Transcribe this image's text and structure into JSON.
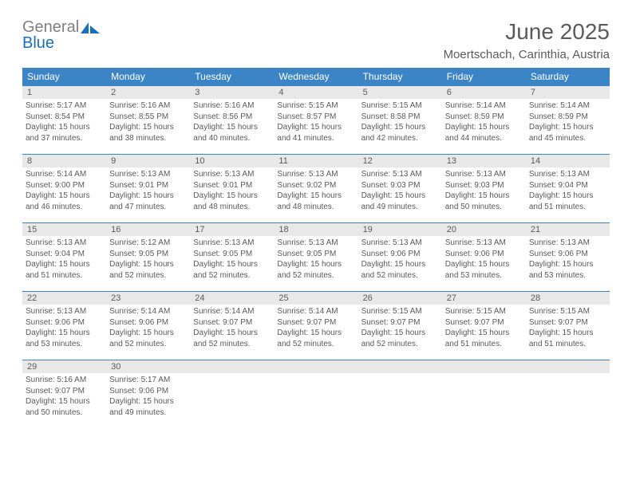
{
  "brand": {
    "word1": "General",
    "word2": "Blue",
    "gray_color": "#808080",
    "blue_color": "#1a6fb5"
  },
  "title": "June 2025",
  "location": "Moertschach, Carinthia, Austria",
  "colors": {
    "header_bg": "#3b85c6",
    "header_text": "#ffffff",
    "daynum_bg": "#e8e8e8",
    "text_color": "#5a5a5a",
    "week_border": "#3b85c6"
  },
  "day_headers": [
    "Sunday",
    "Monday",
    "Tuesday",
    "Wednesday",
    "Thursday",
    "Friday",
    "Saturday"
  ],
  "weeks": [
    [
      {
        "n": "1",
        "sr": "Sunrise: 5:17 AM",
        "ss": "Sunset: 8:54 PM",
        "dl1": "Daylight: 15 hours",
        "dl2": "and 37 minutes."
      },
      {
        "n": "2",
        "sr": "Sunrise: 5:16 AM",
        "ss": "Sunset: 8:55 PM",
        "dl1": "Daylight: 15 hours",
        "dl2": "and 38 minutes."
      },
      {
        "n": "3",
        "sr": "Sunrise: 5:16 AM",
        "ss": "Sunset: 8:56 PM",
        "dl1": "Daylight: 15 hours",
        "dl2": "and 40 minutes."
      },
      {
        "n": "4",
        "sr": "Sunrise: 5:15 AM",
        "ss": "Sunset: 8:57 PM",
        "dl1": "Daylight: 15 hours",
        "dl2": "and 41 minutes."
      },
      {
        "n": "5",
        "sr": "Sunrise: 5:15 AM",
        "ss": "Sunset: 8:58 PM",
        "dl1": "Daylight: 15 hours",
        "dl2": "and 42 minutes."
      },
      {
        "n": "6",
        "sr": "Sunrise: 5:14 AM",
        "ss": "Sunset: 8:59 PM",
        "dl1": "Daylight: 15 hours",
        "dl2": "and 44 minutes."
      },
      {
        "n": "7",
        "sr": "Sunrise: 5:14 AM",
        "ss": "Sunset: 8:59 PM",
        "dl1": "Daylight: 15 hours",
        "dl2": "and 45 minutes."
      }
    ],
    [
      {
        "n": "8",
        "sr": "Sunrise: 5:14 AM",
        "ss": "Sunset: 9:00 PM",
        "dl1": "Daylight: 15 hours",
        "dl2": "and 46 minutes."
      },
      {
        "n": "9",
        "sr": "Sunrise: 5:13 AM",
        "ss": "Sunset: 9:01 PM",
        "dl1": "Daylight: 15 hours",
        "dl2": "and 47 minutes."
      },
      {
        "n": "10",
        "sr": "Sunrise: 5:13 AM",
        "ss": "Sunset: 9:01 PM",
        "dl1": "Daylight: 15 hours",
        "dl2": "and 48 minutes."
      },
      {
        "n": "11",
        "sr": "Sunrise: 5:13 AM",
        "ss": "Sunset: 9:02 PM",
        "dl1": "Daylight: 15 hours",
        "dl2": "and 48 minutes."
      },
      {
        "n": "12",
        "sr": "Sunrise: 5:13 AM",
        "ss": "Sunset: 9:03 PM",
        "dl1": "Daylight: 15 hours",
        "dl2": "and 49 minutes."
      },
      {
        "n": "13",
        "sr": "Sunrise: 5:13 AM",
        "ss": "Sunset: 9:03 PM",
        "dl1": "Daylight: 15 hours",
        "dl2": "and 50 minutes."
      },
      {
        "n": "14",
        "sr": "Sunrise: 5:13 AM",
        "ss": "Sunset: 9:04 PM",
        "dl1": "Daylight: 15 hours",
        "dl2": "and 51 minutes."
      }
    ],
    [
      {
        "n": "15",
        "sr": "Sunrise: 5:13 AM",
        "ss": "Sunset: 9:04 PM",
        "dl1": "Daylight: 15 hours",
        "dl2": "and 51 minutes."
      },
      {
        "n": "16",
        "sr": "Sunrise: 5:12 AM",
        "ss": "Sunset: 9:05 PM",
        "dl1": "Daylight: 15 hours",
        "dl2": "and 52 minutes."
      },
      {
        "n": "17",
        "sr": "Sunrise: 5:13 AM",
        "ss": "Sunset: 9:05 PM",
        "dl1": "Daylight: 15 hours",
        "dl2": "and 52 minutes."
      },
      {
        "n": "18",
        "sr": "Sunrise: 5:13 AM",
        "ss": "Sunset: 9:05 PM",
        "dl1": "Daylight: 15 hours",
        "dl2": "and 52 minutes."
      },
      {
        "n": "19",
        "sr": "Sunrise: 5:13 AM",
        "ss": "Sunset: 9:06 PM",
        "dl1": "Daylight: 15 hours",
        "dl2": "and 52 minutes."
      },
      {
        "n": "20",
        "sr": "Sunrise: 5:13 AM",
        "ss": "Sunset: 9:06 PM",
        "dl1": "Daylight: 15 hours",
        "dl2": "and 53 minutes."
      },
      {
        "n": "21",
        "sr": "Sunrise: 5:13 AM",
        "ss": "Sunset: 9:06 PM",
        "dl1": "Daylight: 15 hours",
        "dl2": "and 53 minutes."
      }
    ],
    [
      {
        "n": "22",
        "sr": "Sunrise: 5:13 AM",
        "ss": "Sunset: 9:06 PM",
        "dl1": "Daylight: 15 hours",
        "dl2": "and 53 minutes."
      },
      {
        "n": "23",
        "sr": "Sunrise: 5:14 AM",
        "ss": "Sunset: 9:06 PM",
        "dl1": "Daylight: 15 hours",
        "dl2": "and 52 minutes."
      },
      {
        "n": "24",
        "sr": "Sunrise: 5:14 AM",
        "ss": "Sunset: 9:07 PM",
        "dl1": "Daylight: 15 hours",
        "dl2": "and 52 minutes."
      },
      {
        "n": "25",
        "sr": "Sunrise: 5:14 AM",
        "ss": "Sunset: 9:07 PM",
        "dl1": "Daylight: 15 hours",
        "dl2": "and 52 minutes."
      },
      {
        "n": "26",
        "sr": "Sunrise: 5:15 AM",
        "ss": "Sunset: 9:07 PM",
        "dl1": "Daylight: 15 hours",
        "dl2": "and 52 minutes."
      },
      {
        "n": "27",
        "sr": "Sunrise: 5:15 AM",
        "ss": "Sunset: 9:07 PM",
        "dl1": "Daylight: 15 hours",
        "dl2": "and 51 minutes."
      },
      {
        "n": "28",
        "sr": "Sunrise: 5:15 AM",
        "ss": "Sunset: 9:07 PM",
        "dl1": "Daylight: 15 hours",
        "dl2": "and 51 minutes."
      }
    ],
    [
      {
        "n": "29",
        "sr": "Sunrise: 5:16 AM",
        "ss": "Sunset: 9:07 PM",
        "dl1": "Daylight: 15 hours",
        "dl2": "and 50 minutes."
      },
      {
        "n": "30",
        "sr": "Sunrise: 5:17 AM",
        "ss": "Sunset: 9:06 PM",
        "dl1": "Daylight: 15 hours",
        "dl2": "and 49 minutes."
      },
      {
        "empty": true
      },
      {
        "empty": true
      },
      {
        "empty": true
      },
      {
        "empty": true
      },
      {
        "empty": true
      }
    ]
  ]
}
